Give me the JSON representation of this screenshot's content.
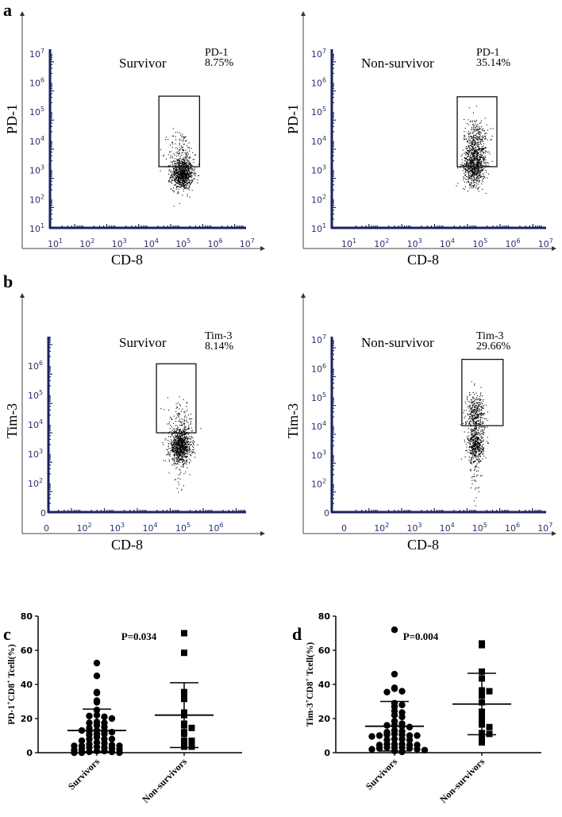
{
  "panel_labels": {
    "a": "a",
    "b": "b",
    "c": "c",
    "d": "d"
  },
  "chart_data": [
    {
      "id": "a_left",
      "type": "scatter",
      "subtype": "flow-cytometry",
      "title": "Survivor",
      "xlabel": "CD-8",
      "ylabel": "PD-1",
      "gate_label": "PD-1",
      "gate_value": "8.75%",
      "x_ticks": [
        {
          "base": "10",
          "exp": "1"
        },
        {
          "base": "10",
          "exp": "2"
        },
        {
          "base": "10",
          "exp": "3"
        },
        {
          "base": "10",
          "exp": "4"
        },
        {
          "base": "10",
          "exp": "5"
        },
        {
          "base": "10",
          "exp": "6"
        },
        {
          "base": "10",
          "exp": "7"
        }
      ],
      "y_ticks": [
        {
          "base": "10",
          "exp": "1"
        },
        {
          "base": "10",
          "exp": "2"
        },
        {
          "base": "10",
          "exp": "3"
        },
        {
          "base": "10",
          "exp": "4"
        },
        {
          "base": "10",
          "exp": "5"
        },
        {
          "base": "10",
          "exp": "6"
        },
        {
          "base": "10",
          "exp": "7"
        }
      ],
      "xlim_log10": [
        1,
        7
      ],
      "ylim_log10": [
        1,
        7
      ],
      "gate_log10": {
        "x": [
          4.33,
          5.6
        ],
        "y": [
          3.1,
          5.52
        ]
      },
      "populations": [
        {
          "x": 5.05,
          "y": 2.85,
          "sx": 0.17,
          "sy": 0.26,
          "n": 900
        },
        {
          "x": 5.0,
          "y": 3.6,
          "sx": 0.2,
          "sy": 0.4,
          "n": 140
        }
      ]
    },
    {
      "id": "a_right",
      "type": "scatter",
      "subtype": "flow-cytometry",
      "title": "Non-survivor",
      "xlabel": "CD-8",
      "ylabel": "PD-1",
      "gate_label": "PD-1",
      "gate_value": "35.14%",
      "x_ticks": [
        {
          "base": "10",
          "exp": "1"
        },
        {
          "base": "10",
          "exp": "2"
        },
        {
          "base": "10",
          "exp": "3"
        },
        {
          "base": "10",
          "exp": "4"
        },
        {
          "base": "10",
          "exp": "5"
        },
        {
          "base": "10",
          "exp": "6"
        },
        {
          "base": "10",
          "exp": "7"
        }
      ],
      "y_ticks": [
        {
          "base": "10",
          "exp": "1"
        },
        {
          "base": "10",
          "exp": "2"
        },
        {
          "base": "10",
          "exp": "3"
        },
        {
          "base": "10",
          "exp": "4"
        },
        {
          "base": "10",
          "exp": "5"
        },
        {
          "base": "10",
          "exp": "6"
        },
        {
          "base": "10",
          "exp": "7"
        }
      ],
      "xlim_log10": [
        1,
        7
      ],
      "ylim_log10": [
        1,
        7
      ],
      "gate_log10": {
        "x": [
          4.39,
          5.6
        ],
        "y": [
          3.1,
          5.5
        ]
      },
      "populations": [
        {
          "x": 4.9,
          "y": 3.15,
          "sx": 0.17,
          "sy": 0.33,
          "n": 700
        },
        {
          "x": 4.95,
          "y": 3.9,
          "sx": 0.18,
          "sy": 0.45,
          "n": 380
        }
      ]
    },
    {
      "id": "b_left",
      "type": "scatter",
      "subtype": "flow-cytometry",
      "title": "Survivor",
      "xlabel": "CD-8",
      "ylabel": "Tim-3",
      "gate_label": "Tim-3",
      "gate_value": "8.14%",
      "x_ticks": [
        {
          "base": "0",
          "exp": ""
        },
        {
          "base": "10",
          "exp": "2"
        },
        {
          "base": "10",
          "exp": "3"
        },
        {
          "base": "10",
          "exp": "4"
        },
        {
          "base": "10",
          "exp": "5"
        },
        {
          "base": "10",
          "exp": "6"
        }
      ],
      "y_ticks": [
        {
          "base": "0",
          "exp": ""
        },
        {
          "base": "10",
          "exp": "2"
        },
        {
          "base": "10",
          "exp": "3"
        },
        {
          "base": "10",
          "exp": "4"
        },
        {
          "base": "10",
          "exp": "5"
        },
        {
          "base": "10",
          "exp": "6"
        }
      ],
      "xlim_log10": [
        1,
        7
      ],
      "ylim_log10": [
        1,
        7
      ],
      "gate_log10": {
        "x": [
          4.28,
          5.48
        ],
        "y": [
          3.7,
          6.05
        ]
      },
      "populations": [
        {
          "x": 5.0,
          "y": 3.25,
          "sx": 0.17,
          "sy": 0.28,
          "n": 900
        },
        {
          "x": 5.0,
          "y": 4.1,
          "sx": 0.2,
          "sy": 0.35,
          "n": 110
        },
        {
          "x": 4.95,
          "y": 2.3,
          "sx": 0.12,
          "sy": 0.35,
          "n": 25
        }
      ]
    },
    {
      "id": "b_right",
      "type": "scatter",
      "subtype": "flow-cytometry",
      "title": "Non-survivor",
      "xlabel": "CD-8",
      "ylabel": "Tim-3",
      "gate_label": "Tim-3",
      "gate_value": "29.66%",
      "x_ticks": [
        {
          "base": "0",
          "exp": ""
        },
        {
          "base": "10",
          "exp": "2"
        },
        {
          "base": "10",
          "exp": "3"
        },
        {
          "base": "10",
          "exp": "4"
        },
        {
          "base": "10",
          "exp": "5"
        },
        {
          "base": "10",
          "exp": "6"
        },
        {
          "base": "10",
          "exp": "7"
        }
      ],
      "y_ticks": [
        {
          "base": "0",
          "exp": ""
        },
        {
          "base": "10",
          "exp": "2"
        },
        {
          "base": "10",
          "exp": "3"
        },
        {
          "base": "10",
          "exp": "4"
        },
        {
          "base": "10",
          "exp": "5"
        },
        {
          "base": "10",
          "exp": "6"
        },
        {
          "base": "10",
          "exp": "7"
        }
      ],
      "xlim_log10": [
        1,
        7
      ],
      "ylim_log10": [
        1,
        7
      ],
      "gate_log10": {
        "x": [
          4.54,
          5.8
        ],
        "y": [
          4.0,
          6.3
        ]
      },
      "populations": [
        {
          "x": 4.95,
          "y": 4.4,
          "sx": 0.14,
          "sy": 0.38,
          "n": 380
        },
        {
          "x": 4.95,
          "y": 3.3,
          "sx": 0.12,
          "sy": 0.3,
          "n": 420
        },
        {
          "x": 4.95,
          "y": 2.2,
          "sx": 0.1,
          "sy": 0.5,
          "n": 40
        }
      ]
    },
    {
      "id": "c",
      "type": "scatter",
      "subtype": "dot-plot-mean-sd",
      "title": "P=0.034",
      "ylabel_parts": [
        "PD-1",
        "+",
        "CD8",
        "+",
        " Tcell(%)"
      ],
      "ylim": [
        0,
        80
      ],
      "y_ticks": [
        "0",
        "20",
        "40",
        "60",
        "80"
      ],
      "categories": [
        "Survivors",
        "Non-survivors"
      ],
      "series": [
        {
          "name": "Survivors",
          "marker": "circle",
          "mean": 13,
          "sd_upper": 25.5,
          "sd_lower": 0.5,
          "values": [
            52.5,
            45,
            35.5,
            35,
            30.5,
            29.5,
            25,
            22,
            21,
            21.5,
            20,
            18,
            17.5,
            16,
            17.5,
            15,
            14.5,
            13,
            12.5,
            12.5,
            12,
            13,
            11,
            11,
            10.5,
            9,
            8,
            8,
            8,
            7,
            6,
            5.5,
            5,
            4.5,
            4,
            4,
            4,
            3.5,
            3,
            3,
            2.5,
            2,
            2,
            1.5,
            1,
            1,
            0.5,
            0.5,
            0,
            0,
            0
          ]
        },
        {
          "name": "Non-survivors",
          "marker": "square",
          "mean": 22,
          "sd_upper": 41,
          "sd_lower": 3,
          "values": [
            70,
            58.5,
            35.5,
            33,
            31.5,
            23.5,
            22,
            17,
            16,
            14.5,
            12,
            11,
            7,
            7,
            6,
            3.5,
            3.5
          ]
        }
      ]
    },
    {
      "id": "d",
      "type": "scatter",
      "subtype": "dot-plot-mean-sd",
      "title": "P=0.004",
      "ylabel_parts": [
        "Tim-3",
        "+",
        "CD8",
        "+",
        " Tcell(%)"
      ],
      "ylim": [
        0,
        80
      ],
      "y_ticks": [
        "0",
        "20",
        "40",
        "60",
        "80"
      ],
      "categories": [
        "Survivors",
        "Non-survivors"
      ],
      "series": [
        {
          "name": "Survivors",
          "marker": "circle",
          "mean": 15.5,
          "sd_upper": 30,
          "sd_lower": 1,
          "values": [
            72,
            46,
            38,
            37.5,
            36,
            35.5,
            29,
            28,
            27,
            24.5,
            23.5,
            22,
            21,
            18.5,
            17,
            16,
            15.5,
            16,
            15,
            13,
            12.5,
            12,
            11,
            10.5,
            10.5,
            10,
            10,
            10,
            9.5,
            8,
            8,
            7.5,
            7.5,
            5,
            5,
            5,
            4.5,
            4.5,
            4.5,
            3,
            3,
            3,
            2.5,
            2.5,
            2,
            2,
            1.5,
            1,
            0.5
          ]
        },
        {
          "name": "Non-survivors",
          "marker": "square",
          "mean": 28.5,
          "sd_upper": 46.5,
          "sd_lower": 10.5,
          "values": [
            64,
            63,
            47.5,
            43.5,
            36.5,
            36,
            33.5,
            29.5,
            24,
            20.5,
            18.5,
            16.5,
            15,
            11.5,
            11,
            9,
            6
          ]
        }
      ]
    }
  ]
}
